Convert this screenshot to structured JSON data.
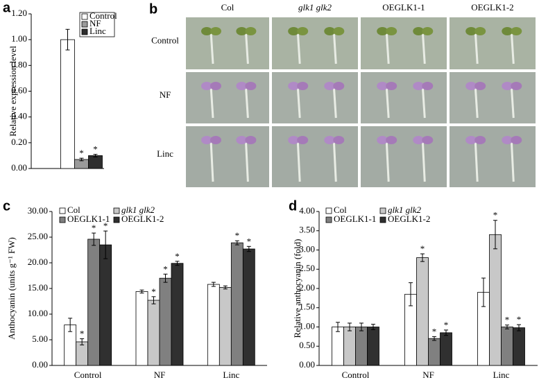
{
  "chart_data": [
    {
      "type": "bar",
      "panel": "a",
      "ylabel": "Relative expression level",
      "categories": [
        null
      ],
      "series": [
        {
          "name": "Control",
          "color": "#ffffff",
          "values": [
            1.0
          ],
          "errors": [
            0.08
          ],
          "annotations": [
            null
          ]
        },
        {
          "name": "NF",
          "color": "#9a9a9a",
          "values": [
            0.07
          ],
          "errors": [
            0.01
          ],
          "annotations": [
            "*"
          ]
        },
        {
          "name": "Linc",
          "color": "#2e2e2e",
          "values": [
            0.1
          ],
          "errors": [
            0.01
          ],
          "annotations": [
            "*"
          ]
        }
      ],
      "ylim": [
        0,
        1.2
      ],
      "yticks": [
        {
          "value": 0,
          "label": "0.00"
        },
        {
          "value": 0.2,
          "label": "0.20"
        },
        {
          "value": 0.4,
          "label": "0.40"
        },
        {
          "value": 0.6,
          "label": "0.60"
        },
        {
          "value": 0.8,
          "label": "0.80"
        },
        {
          "value": 1.0,
          "label": "1.00"
        },
        {
          "value": 1.2,
          "label": "1.20"
        }
      ]
    },
    {
      "type": "bar",
      "panel": "c",
      "ylabel": "Anthocyanin (units g⁻¹ FW)",
      "categories": [
        "Control",
        "NF",
        "Linc"
      ],
      "series": [
        {
          "name": "Col",
          "color": "#ffffff",
          "values": [
            7.9,
            14.4,
            15.8
          ],
          "errors": [
            1.3,
            0.3,
            0.4
          ],
          "annotations": [
            null,
            null,
            null
          ]
        },
        {
          "name": "glk1 glk2",
          "color": "#c8c8c8",
          "values": [
            4.6,
            12.7,
            15.2
          ],
          "errors": [
            0.6,
            0.7,
            0.3
          ],
          "annotations": [
            "*",
            "*",
            null
          ]
        },
        {
          "name": "OEGLK1-1",
          "color": "#808080",
          "values": [
            24.6,
            17.0,
            23.9
          ],
          "errors": [
            1.2,
            0.8,
            0.4
          ],
          "annotations": [
            "*",
            "*",
            "*"
          ]
        },
        {
          "name": "OEGLK1-2",
          "color": "#303030",
          "values": [
            23.5,
            19.9,
            22.7
          ],
          "errors": [
            2.7,
            0.4,
            0.5
          ],
          "annotations": [
            "*",
            "*",
            "*"
          ]
        }
      ],
      "ylim": [
        0,
        30
      ],
      "yticks": [
        {
          "value": 0,
          "label": "0.00"
        },
        {
          "value": 5,
          "label": "5.00"
        },
        {
          "value": 10,
          "label": "10.00"
        },
        {
          "value": 15,
          "label": "15.00"
        },
        {
          "value": 20,
          "label": "20.00"
        },
        {
          "value": 25,
          "label": "25.00"
        },
        {
          "value": 30,
          "label": "30.00"
        }
      ]
    },
    {
      "type": "bar",
      "panel": "d",
      "ylabel": "Relative anthocyanin (fold)",
      "categories": [
        "Control",
        "NF",
        "Linc"
      ],
      "series": [
        {
          "name": "Col",
          "color": "#ffffff",
          "values": [
            1.0,
            1.85,
            1.9
          ],
          "errors": [
            0.12,
            0.3,
            0.37
          ],
          "annotations": [
            null,
            null,
            null
          ]
        },
        {
          "name": "glk1 glk2",
          "color": "#c8c8c8",
          "values": [
            1.0,
            2.8,
            3.4
          ],
          "errors": [
            0.1,
            0.1,
            0.37
          ],
          "annotations": [
            null,
            "*",
            "*"
          ]
        },
        {
          "name": "OEGLK1-1",
          "color": "#808080",
          "values": [
            1.0,
            0.7,
            1.0
          ],
          "errors": [
            0.1,
            0.05,
            0.05
          ],
          "annotations": [
            null,
            "*",
            "*"
          ]
        },
        {
          "name": "OEGLK1-2",
          "color": "#303030",
          "values": [
            1.0,
            0.85,
            0.98
          ],
          "errors": [
            0.07,
            0.07,
            0.08
          ],
          "annotations": [
            null,
            "*",
            "*"
          ]
        }
      ],
      "ylim": [
        0,
        4
      ],
      "yticks": [
        {
          "value": 0,
          "label": "0.00"
        },
        {
          "value": 0.5,
          "label": "0.50"
        },
        {
          "value": 1.0,
          "label": "1.00"
        },
        {
          "value": 1.5,
          "label": "1.50"
        },
        {
          "value": 2.0,
          "label": "2.00"
        },
        {
          "value": 2.5,
          "label": "2.50"
        },
        {
          "value": 3.0,
          "label": "3.00"
        },
        {
          "value": 3.5,
          "label": "3.50"
        },
        {
          "value": 4.0,
          "label": "4.00"
        }
      ]
    }
  ],
  "photo_panel": {
    "panel": "b",
    "columns": [
      "Col",
      "glk1 glk2",
      "OEGLK1-1",
      "OEGLK1-2"
    ],
    "rows": [
      "Control",
      "NF",
      "Linc"
    ]
  }
}
